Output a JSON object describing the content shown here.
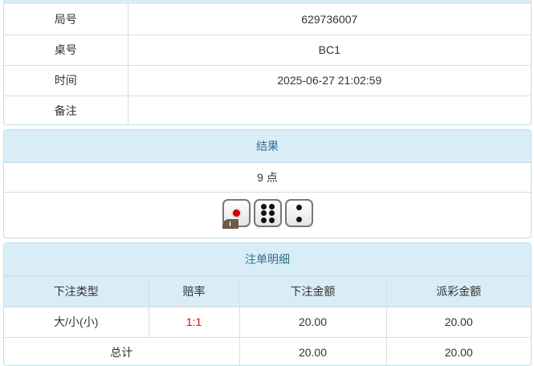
{
  "info": {
    "rows": [
      {
        "label": "局号",
        "value": "629736007"
      },
      {
        "label": "桌号",
        "value": "BC1"
      },
      {
        "label": "时间",
        "value": "2025-06-27 21:02:59"
      },
      {
        "label": "备注",
        "value": ""
      }
    ]
  },
  "result": {
    "title": "结果",
    "points": "9 点",
    "dice": [
      1,
      6,
      2
    ],
    "info_badge": "i"
  },
  "bets": {
    "title": "注单明细",
    "headers": [
      "下注类型",
      "赔率",
      "下注金额",
      "派彩金额"
    ],
    "rows": [
      {
        "type": "大/小(小)",
        "odds": "1:1",
        "amount": "20.00",
        "payout": "20.00"
      }
    ],
    "total": {
      "label": "总计",
      "amount": "20.00",
      "payout": "20.00"
    },
    "odds_color": "#ee0000"
  }
}
